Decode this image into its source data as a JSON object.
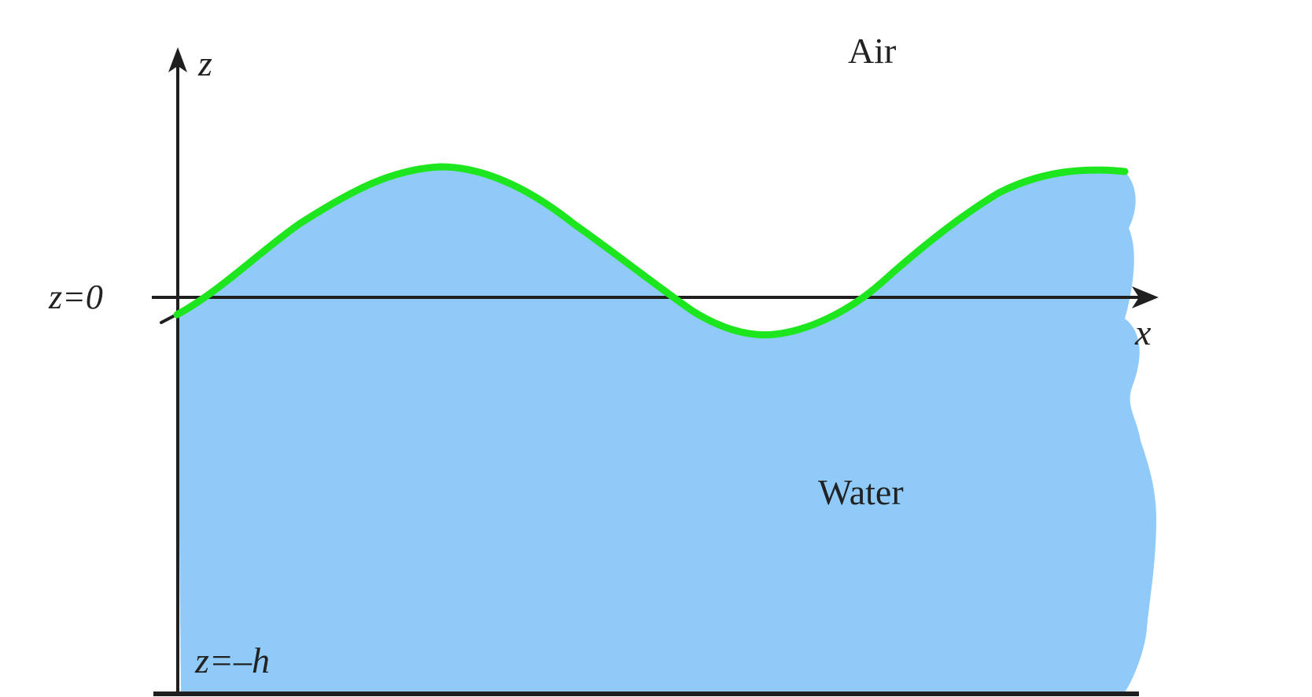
{
  "labels": {
    "air": "Air",
    "water": "Water",
    "axis_z": "z",
    "axis_x": "x",
    "surface_level": "z=0",
    "bottom_level": "z=–h"
  },
  "colors": {
    "water": "#90CAF9",
    "surface_curve": "#1EE61E",
    "axes": "#1F1F1F",
    "text": "#222222",
    "background": "#FFFFFF"
  }
}
